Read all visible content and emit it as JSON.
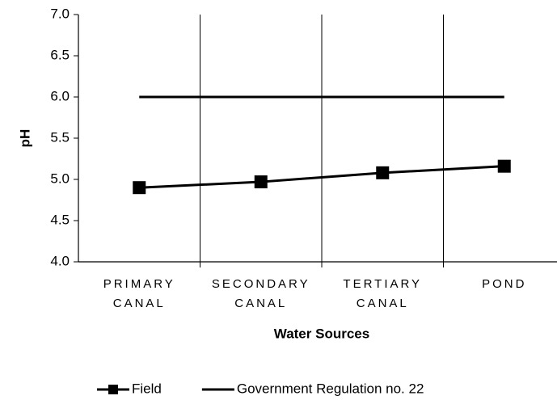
{
  "chart_data": {
    "type": "line",
    "x_label": "Water Sources",
    "y_label": "pH",
    "categories": [
      [
        "PRIMARY",
        "CANAL"
      ],
      [
        "SECONDARY",
        "CANAL"
      ],
      [
        "TERTIARY",
        "CANAL"
      ],
      [
        "POND"
      ]
    ],
    "series": [
      {
        "name": "Field",
        "color": "#000000",
        "marker": "square",
        "values": [
          4.9,
          4.97,
          5.08,
          5.16
        ]
      },
      {
        "name": "Government Regulation no. 22",
        "color": "#000000",
        "marker": "none",
        "values": [
          6,
          6,
          6,
          6
        ]
      }
    ],
    "ylim": [
      4,
      7
    ],
    "yticks": [
      {
        "value": 4,
        "label": "4.0"
      },
      4.5,
      {
        "value": 5,
        "label": "5.0"
      },
      5.5,
      {
        "value": 6,
        "label": "6.0"
      },
      6.5,
      {
        "value": 7,
        "label": "7.0"
      }
    ],
    "legend": "bottom"
  }
}
